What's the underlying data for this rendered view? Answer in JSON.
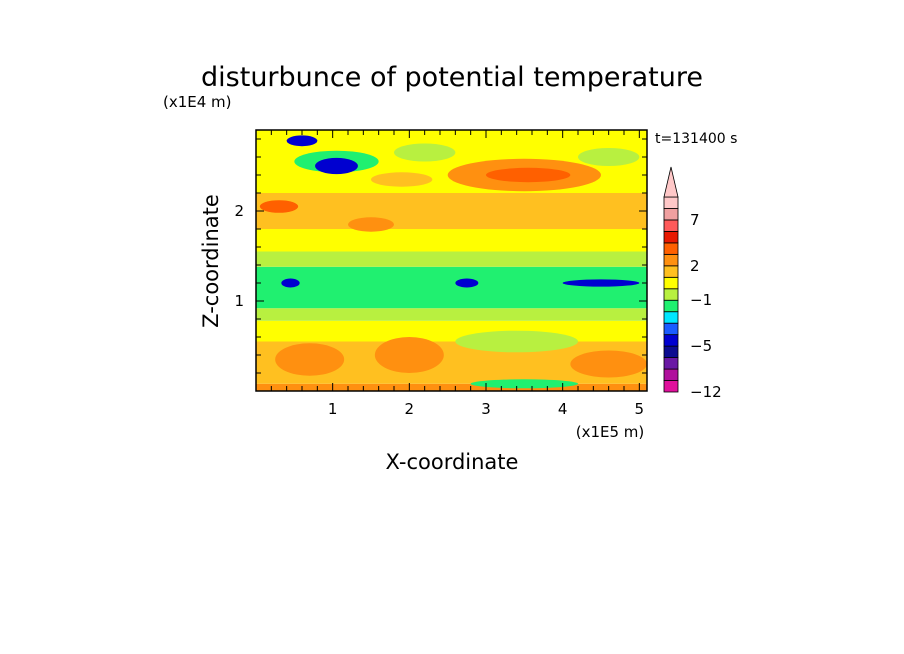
{
  "chart_data": {
    "type": "heatmap",
    "title": "disturbunce of potential temperature",
    "xlabel": "X-coordinate",
    "ylabel": "Z-coordinate",
    "x_unit": "(x1E5 m)",
    "y_unit": "(x1E4 m)",
    "time_label": "t=131400 s",
    "xlim": [
      0,
      5.1
    ],
    "ylim": [
      0,
      2.9
    ],
    "x_ticks": [
      1,
      2,
      3,
      4,
      5
    ],
    "y_ticks": [
      1,
      2
    ],
    "colorbar": {
      "labels": [
        {
          "text": "7",
          "value": 7
        },
        {
          "text": "2",
          "value": 2
        },
        {
          "text": "−1",
          "value": -1
        },
        {
          "text": "−5",
          "value": -5
        },
        {
          "text": "−12",
          "value": -12
        }
      ],
      "levels": [
        -12,
        -10,
        -8,
        -7,
        -5,
        -4,
        -3,
        -2,
        -1,
        0,
        1,
        2,
        3,
        4,
        5,
        7,
        9,
        11
      ],
      "colors": [
        "#e0109c",
        "#b0109c",
        "#6a18a4",
        "#0c0c90",
        "#0000d0",
        "#1a5cff",
        "#00e6ff",
        "#20f070",
        "#b8f040",
        "#ffff00",
        "#ffc020",
        "#ff9010",
        "#ff6000",
        "#e81800",
        "#ff5a5a",
        "#f0a0a0",
        "#ffc8c8"
      ],
      "extend": "max"
    },
    "field_bands": [
      {
        "z": [
          0.0,
          0.08
        ],
        "value": 2.2,
        "description_color": "orange"
      },
      {
        "z": [
          0.08,
          0.55
        ],
        "value": 1.6,
        "description_color": "yellow-orange"
      },
      {
        "z": [
          0.55,
          0.78
        ],
        "value": 0.3,
        "description_color": "yellow"
      },
      {
        "z": [
          0.78,
          0.92
        ],
        "value": -0.8,
        "description_color": "green"
      },
      {
        "z": [
          0.92,
          1.38
        ],
        "value": -1.5,
        "description_color": "cyan"
      },
      {
        "z": [
          1.38,
          1.55
        ],
        "value": -0.6,
        "description_color": "green"
      },
      {
        "z": [
          1.55,
          1.8
        ],
        "value": 0.6,
        "description_color": "yellow"
      },
      {
        "z": [
          1.8,
          2.2
        ],
        "value": 1.6,
        "description_color": "orange"
      },
      {
        "z": [
          2.2,
          2.45
        ],
        "value": 0.2,
        "description_color": "yellow-green"
      },
      {
        "z": [
          2.45,
          2.9
        ],
        "value": 0.8,
        "description_color": "yellow"
      }
    ]
  }
}
